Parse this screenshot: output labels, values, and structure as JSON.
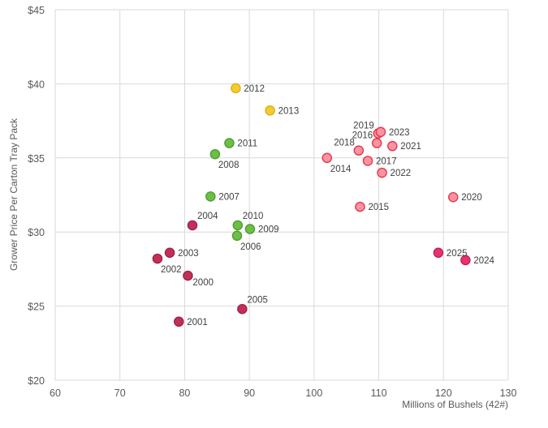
{
  "chart_data": {
    "type": "scatter",
    "title": "",
    "xlabel": "Millions  of Bushels (42#)",
    "ylabel": "Grower Price Per Carton Tray Pack",
    "xlim": [
      60,
      130
    ],
    "ylim": [
      20,
      45
    ],
    "x_ticks": [
      "60",
      "70",
      "80",
      "90",
      "100",
      "110",
      "120",
      "130"
    ],
    "y_ticks": [
      "$20",
      "$25",
      "$30",
      "$35",
      "$40",
      "$45"
    ],
    "grid": true,
    "legend": "none",
    "colors": {
      "crimson": {
        "fill": "#C2305A",
        "stroke": "#9E1F45"
      },
      "green": {
        "fill": "#6DBE45",
        "stroke": "#4E9A2E"
      },
      "yellow": {
        "fill": "#F3CC2E",
        "stroke": "#D9AE14"
      },
      "pink": {
        "fill": "#F8939F",
        "stroke": "#E5314B"
      },
      "hotpink": {
        "fill": "#E8336E",
        "stroke": "#C01B52"
      }
    },
    "points": [
      {
        "label": "2000",
        "x": 80.5,
        "y": 27.05,
        "color": "crimson",
        "label_pos": "below-right"
      },
      {
        "label": "2001",
        "x": 79.1,
        "y": 23.95,
        "color": "crimson",
        "label_pos": "right"
      },
      {
        "label": "2002",
        "x": 75.8,
        "y": 28.2,
        "color": "crimson",
        "label_pos": "below"
      },
      {
        "label": "2003",
        "x": 77.7,
        "y": 28.6,
        "color": "crimson",
        "label_pos": "right"
      },
      {
        "label": "2004",
        "x": 81.2,
        "y": 30.45,
        "color": "crimson",
        "label_pos": "above-right"
      },
      {
        "label": "2005",
        "x": 88.9,
        "y": 24.8,
        "color": "crimson",
        "label_pos": "above-right"
      },
      {
        "label": "2006",
        "x": 88.1,
        "y": 29.75,
        "color": "green",
        "label_pos": "below"
      },
      {
        "label": "2007",
        "x": 84.0,
        "y": 32.4,
        "color": "green",
        "label_pos": "right"
      },
      {
        "label": "2008",
        "x": 84.7,
        "y": 35.25,
        "color": "green",
        "label_pos": "below"
      },
      {
        "label": "2009",
        "x": 90.1,
        "y": 30.2,
        "color": "green",
        "label_pos": "right"
      },
      {
        "label": "2010",
        "x": 88.2,
        "y": 30.45,
        "color": "green",
        "label_pos": "above-right"
      },
      {
        "label": "2011",
        "x": 86.9,
        "y": 36.0,
        "color": "green",
        "label_pos": "right"
      },
      {
        "label": "2012",
        "x": 87.9,
        "y": 39.7,
        "color": "yellow",
        "label_pos": "right"
      },
      {
        "label": "2013",
        "x": 93.2,
        "y": 38.2,
        "color": "yellow",
        "label_pos": "right"
      },
      {
        "label": "2014",
        "x": 102.0,
        "y": 35.0,
        "color": "pink",
        "label_pos": "below"
      },
      {
        "label": "2015",
        "x": 107.1,
        "y": 31.7,
        "color": "pink",
        "label_pos": "right"
      },
      {
        "label": "2016",
        "x": 109.7,
        "y": 36.0,
        "color": "pink",
        "label_pos": "above-left"
      },
      {
        "label": "2017",
        "x": 108.3,
        "y": 34.8,
        "color": "pink",
        "label_pos": "right"
      },
      {
        "label": "2018",
        "x": 106.9,
        "y": 35.5,
        "color": "pink",
        "label_pos": "above-left"
      },
      {
        "label": "2019",
        "x": 109.9,
        "y": 36.65,
        "color": "pink",
        "label_pos": "above-left"
      },
      {
        "label": "2020",
        "x": 121.5,
        "y": 32.35,
        "color": "pink",
        "label_pos": "right"
      },
      {
        "label": "2021",
        "x": 112.1,
        "y": 35.8,
        "color": "pink",
        "label_pos": "right"
      },
      {
        "label": "2022",
        "x": 110.5,
        "y": 34.0,
        "color": "pink",
        "label_pos": "right"
      },
      {
        "label": "2023",
        "x": 110.3,
        "y": 36.75,
        "color": "pink",
        "label_pos": "right"
      },
      {
        "label": "2024",
        "x": 123.4,
        "y": 28.1,
        "color": "hotpink",
        "label_pos": "right"
      },
      {
        "label": "2025",
        "x": 119.2,
        "y": 28.6,
        "color": "hotpink",
        "label_pos": "right"
      }
    ]
  }
}
